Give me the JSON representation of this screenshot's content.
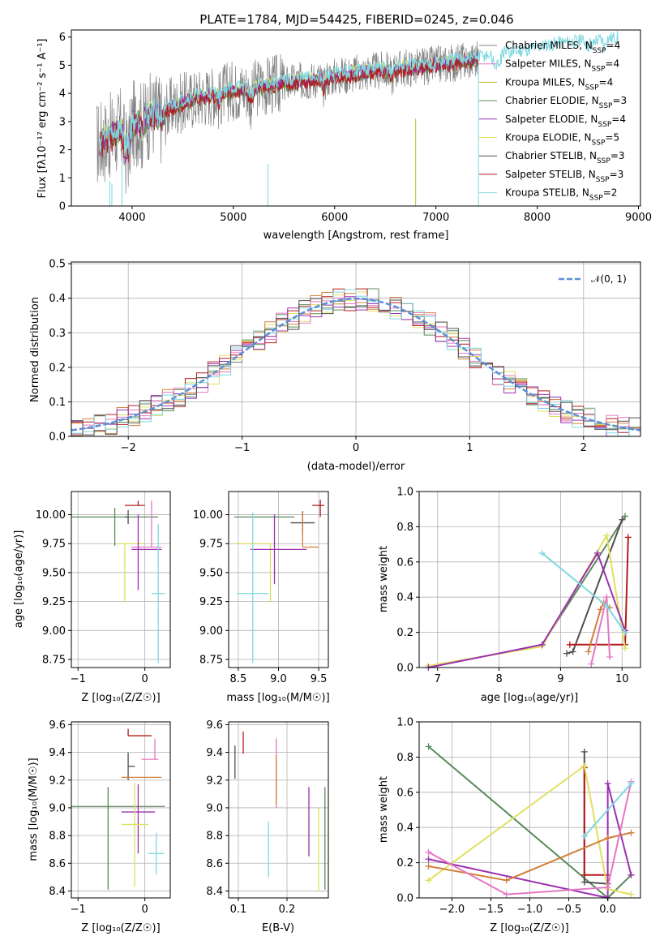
{
  "figure_title": "PLATE=1784, MJD=54425, FIBERID=0245, z=0.046",
  "colors": {
    "chabrier_miles": "#808080",
    "salpeter_miles": "#e377c2",
    "kroupa_miles": "#bcbd22",
    "chabrier_elodie": "#5a8a5a",
    "salpeter_elodie": "#9b30b0",
    "kroupa_elodie": "#e0e060",
    "chabrier_stelib": "#505050",
    "salpeter_stelib": "#b31b1b",
    "kroupa_stelib": "#7fd8e0",
    "gaussian": "#5b8fd9",
    "orange": "#d2803a"
  },
  "chart_data": [
    {
      "id": "spectrum",
      "type": "line",
      "xlabel": "wavelength [Angstrom, rest frame]",
      "ylabel": "Flux [fλ10⁻¹⁷ erg cm⁻² s⁻¹ A⁻¹]",
      "xlim": [
        3400,
        9020
      ],
      "ylim": [
        0,
        6.25
      ],
      "xticks": [
        4000,
        5000,
        6000,
        7000,
        8000,
        9000
      ],
      "yticks": [
        0,
        1,
        2,
        3,
        4,
        5,
        6
      ],
      "legend": [
        {
          "name": "Chabrier MILES, NSSP=4",
          "color": "#808080"
        },
        {
          "name": "Salpeter MILES, NSSP=4",
          "color": "#e377c2"
        },
        {
          "name": "Kroupa MILES, NSSP=4",
          "color": "#bcbd22"
        },
        {
          "name": "Chabrier ELODIE, NSSP=3",
          "color": "#5a8a5a"
        },
        {
          "name": "Salpeter ELODIE, NSSP=4",
          "color": "#9b30b0"
        },
        {
          "name": "Kroupa ELODIE, NSSP=5",
          "color": "#e0e060"
        },
        {
          "name": "Chabrier STELIB, NSSP=3",
          "color": "#505050"
        },
        {
          "name": "Salpeter STELIB, NSSP=3",
          "color": "#b31b1b"
        },
        {
          "name": "Kroupa STELIB, NSSP=2",
          "color": "#7fd8e0"
        }
      ],
      "continuum": {
        "x": [
          3650,
          3800,
          4000,
          4300,
          4600,
          5000,
          5400,
          5800,
          6200,
          6600,
          7000,
          7400,
          7800,
          8200,
          8600,
          8800
        ],
        "y": [
          2.2,
          2.5,
          2.9,
          3.4,
          3.8,
          4.1,
          4.3,
          4.5,
          4.7,
          4.85,
          5.0,
          5.2,
          5.4,
          5.7,
          5.8,
          5.9
        ]
      }
    },
    {
      "id": "residuals",
      "type": "line",
      "xlabel": "(data-model)/error",
      "ylabel": "Normed distribution",
      "xlim": [
        -2.5,
        2.5
      ],
      "ylim": [
        0,
        0.505
      ],
      "xticks": [
        -2,
        -1,
        0,
        1,
        2
      ],
      "yticks": [
        0.0,
        0.1,
        0.2,
        0.3,
        0.4,
        0.5
      ],
      "legend": [
        {
          "name": "𝒩(0, 1)",
          "color": "#5b8fd9"
        }
      ],
      "bins": {
        "start": -2.5,
        "width": 0.1,
        "count": 50
      }
    },
    {
      "id": "age_vs_Z",
      "type": "scatter",
      "xlabel": "Z [log₁₀(Z/Z☉)]",
      "ylabel": "age  [log₁₀(age/yr)]",
      "xlim": [
        -1.1,
        0.38
      ],
      "ylim": [
        8.68,
        10.2
      ],
      "xticks": [
        -1,
        0
      ],
      "yticks": [
        8.75,
        9.0,
        9.25,
        9.5,
        9.75,
        10.0
      ],
      "points": [
        {
          "x": -0.45,
          "y": 9.98,
          "xerr": [
            0.65,
            0.65
          ],
          "yerr": [
            0.25,
            0.08
          ],
          "color": "#5a8a5a"
        },
        {
          "x": -0.1,
          "y": 10.08,
          "xerr": [
            0.2,
            0.1
          ],
          "yerr": [
            0.0,
            0.04
          ],
          "color": "#b31b1b"
        },
        {
          "x": -0.25,
          "y": 9.98,
          "xerr": [
            0.05,
            0.0
          ],
          "yerr": [
            0.06,
            0.06
          ],
          "color": "#505050"
        },
        {
          "x": -0.3,
          "y": 9.75,
          "xerr": [
            0.1,
            0.3
          ],
          "yerr": [
            0.5,
            0.0
          ],
          "color": "#e0e060"
        },
        {
          "x": 0.1,
          "y": 9.72,
          "xerr": [
            0.3,
            0.15
          ],
          "yerr": [
            0.0,
            0.4
          ],
          "color": "#e377c2"
        },
        {
          "x": -0.1,
          "y": 9.7,
          "xerr": [
            0.1,
            0.35
          ],
          "yerr": [
            0.35,
            0.3
          ],
          "color": "#9b30b0"
        },
        {
          "x": 0.2,
          "y": 9.32,
          "xerr": [
            0.1,
            0.1
          ],
          "yerr": [
            0.6,
            0.6
          ],
          "color": "#7fd8e0"
        }
      ]
    },
    {
      "id": "age_vs_mass",
      "type": "scatter",
      "xlabel": "mass [log₁₀(M/M☉)]",
      "ylabel": "",
      "xlim": [
        8.38,
        9.62
      ],
      "ylim": [
        8.68,
        10.2
      ],
      "xticks": [
        8.5,
        9.0,
        9.5
      ],
      "yticks": [
        8.75,
        9.0,
        9.25,
        9.5,
        9.75,
        10.0
      ],
      "points": [
        {
          "x": 8.6,
          "y": 9.98,
          "xerr": [
            0.15,
            0.6
          ],
          "yerr": [
            0.0,
            0.0
          ],
          "color": "#5a8a5a"
        },
        {
          "x": 9.52,
          "y": 10.08,
          "xerr": [
            0.1,
            0.05
          ],
          "yerr": [
            0.1,
            0.05
          ],
          "color": "#b31b1b"
        },
        {
          "x": 9.3,
          "y": 9.93,
          "xerr": [
            0.15,
            0.15
          ],
          "yerr": [
            0.1,
            0.1
          ],
          "color": "#505050"
        },
        {
          "x": 8.9,
          "y": 9.75,
          "xerr": [
            0.45,
            0.0
          ],
          "yerr": [
            0.5,
            0.0
          ],
          "color": "#e0e060"
        },
        {
          "x": 9.3,
          "y": 9.72,
          "xerr": [
            0.0,
            0.2
          ],
          "yerr": [
            0.0,
            0.3
          ],
          "color": "#d2803a"
        },
        {
          "x": 8.95,
          "y": 9.7,
          "xerr": [
            0.3,
            0.4
          ],
          "yerr": [
            0.3,
            0.3
          ],
          "color": "#9b30b0"
        },
        {
          "x": 8.68,
          "y": 9.32,
          "xerr": [
            0.2,
            0.2
          ],
          "yerr": [
            0.6,
            0.7
          ],
          "color": "#7fd8e0"
        }
      ]
    },
    {
      "id": "massweight_vs_age",
      "type": "line",
      "xlabel": "age  [log₁₀(age/yr)]",
      "ylabel": "mass weight",
      "xlim": [
        6.7,
        10.3
      ],
      "ylim": [
        0,
        1.0
      ],
      "xticks": [
        7,
        8,
        9,
        10
      ],
      "yticks": [
        0.0,
        0.2,
        0.4,
        0.6,
        0.8,
        1.0
      ],
      "series": [
        {
          "color": "#5a8a5a",
          "x": [
            8.7,
            10.05
          ],
          "y": [
            0.13,
            0.86
          ]
        },
        {
          "color": "#505050",
          "x": [
            9.1,
            9.2,
            10.0
          ],
          "y": [
            0.08,
            0.09,
            0.84
          ]
        },
        {
          "color": "#b31b1b",
          "x": [
            9.15,
            10.05,
            10.1
          ],
          "y": [
            0.13,
            0.13,
            0.74
          ]
        },
        {
          "color": "#e0e060",
          "x": [
            6.85,
            8.7,
            9.75,
            10.05
          ],
          "y": [
            0.01,
            0.12,
            0.75,
            0.11
          ]
        },
        {
          "color": "#9b30b0",
          "x": [
            6.85,
            8.7,
            9.6,
            10.05
          ],
          "y": [
            0.0,
            0.13,
            0.65,
            0.21
          ]
        },
        {
          "color": "#d2803a",
          "x": [
            9.45,
            9.65,
            9.7,
            9.8
          ],
          "y": [
            0.09,
            0.33,
            0.37,
            0.34
          ]
        },
        {
          "color": "#e377c2",
          "x": [
            9.5,
            9.75,
            9.8
          ],
          "y": [
            0.02,
            0.4,
            0.06
          ]
        },
        {
          "color": "#7fd8e0",
          "x": [
            8.7,
            9.75,
            10.05
          ],
          "y": [
            0.65,
            0.35,
            0.2
          ]
        }
      ]
    },
    {
      "id": "mass_vs_Z",
      "type": "scatter",
      "xlabel": "Z [log₁₀(Z/Z☉)]",
      "ylabel": "mass [log₁₀(M/M☉)]",
      "xlim": [
        -1.1,
        0.38
      ],
      "ylim": [
        8.35,
        9.62
      ],
      "xticks": [
        -1,
        0
      ],
      "yticks": [
        8.4,
        8.6,
        8.8,
        9.0,
        9.2,
        9.4,
        9.6
      ],
      "points": [
        {
          "x": -0.55,
          "y": 9.01,
          "xerr": [
            0.55,
            0.85
          ],
          "yerr": [
            0.6,
            0.14
          ],
          "color": "#5a8a5a"
        },
        {
          "x": -0.25,
          "y": 9.52,
          "xerr": [
            0.0,
            0.35
          ],
          "yerr": [
            0.0,
            0.05
          ],
          "color": "#b31b1b"
        },
        {
          "x": -0.25,
          "y": 9.3,
          "xerr": [
            0.0,
            0.1
          ],
          "yerr": [
            0.1,
            0.1
          ],
          "color": "#505050"
        },
        {
          "x": 0.0,
          "y": 9.22,
          "xerr": [
            0.35,
            0.25
          ],
          "yerr": [
            0.0,
            0.0
          ],
          "color": "#d2803a"
        },
        {
          "x": 0.15,
          "y": 9.35,
          "xerr": [
            0.2,
            0.05
          ],
          "yerr": [
            0.0,
            0.15
          ],
          "color": "#e377c2"
        },
        {
          "x": -0.1,
          "y": 8.97,
          "xerr": [
            0.25,
            0.25
          ],
          "yerr": [
            0.3,
            0.2
          ],
          "color": "#9b30b0"
        },
        {
          "x": -0.15,
          "y": 8.88,
          "xerr": [
            0.2,
            0.2
          ],
          "yerr": [
            0.45,
            0.3
          ],
          "color": "#e0e060"
        },
        {
          "x": 0.17,
          "y": 8.67,
          "xerr": [
            0.12,
            0.12
          ],
          "yerr": [
            0.15,
            0.15
          ],
          "color": "#7fd8e0"
        }
      ]
    },
    {
      "id": "mass_vs_EBV",
      "type": "scatter",
      "xlabel": "E(B-V)",
      "ylabel": "",
      "xlim": [
        0.08,
        0.285
      ],
      "ylim": [
        8.35,
        9.62
      ],
      "xticks": [
        0.1,
        0.2
      ],
      "yticks": [
        8.4,
        8.6,
        8.8,
        9.0,
        9.2,
        9.4,
        9.6
      ],
      "points": [
        {
          "x": 0.093,
          "y": 9.33,
          "xerr": [
            0,
            0
          ],
          "yerr": [
            0.12,
            0.12
          ],
          "color": "#505050"
        },
        {
          "x": 0.11,
          "y": 9.47,
          "xerr": [
            0,
            0
          ],
          "yerr": [
            0.08,
            0.08
          ],
          "color": "#b31b1b"
        },
        {
          "x": 0.178,
          "y": 9.25,
          "xerr": [
            0,
            0
          ],
          "yerr": [
            0.25,
            0.25
          ],
          "color": "#e377c2"
        },
        {
          "x": 0.178,
          "y": 9.2,
          "xerr": [
            0,
            0
          ],
          "yerr": [
            0.18,
            0.18
          ],
          "color": "#d2803a"
        },
        {
          "x": 0.162,
          "y": 8.7,
          "xerr": [
            0,
            0
          ],
          "yerr": [
            0.2,
            0.2
          ],
          "color": "#7fd8e0"
        },
        {
          "x": 0.245,
          "y": 8.9,
          "xerr": [
            0,
            0
          ],
          "yerr": [
            0.25,
            0.25
          ],
          "color": "#9b30b0"
        },
        {
          "x": 0.265,
          "y": 8.7,
          "xerr": [
            0,
            0
          ],
          "yerr": [
            0.3,
            0.3
          ],
          "color": "#e0e060"
        },
        {
          "x": 0.278,
          "y": 8.78,
          "xerr": [
            0,
            0
          ],
          "yerr": [
            0.37,
            0.37
          ],
          "color": "#5a8a5a"
        }
      ]
    },
    {
      "id": "massweight_vs_Z",
      "type": "line",
      "xlabel": "Z [log₁₀(Z/Z☉)]",
      "ylabel": "mass weight",
      "xlim": [
        -2.42,
        0.42
      ],
      "ylim": [
        0,
        1.0
      ],
      "xticks": [
        -2.0,
        -1.5,
        -1.0,
        -0.5,
        0.0
      ],
      "yticks": [
        0.0,
        0.2,
        0.4,
        0.6,
        0.8,
        1.0
      ],
      "series": [
        {
          "color": "#5a8a5a",
          "x": [
            -2.3,
            0.0,
            0.3
          ],
          "y": [
            0.86,
            0.0,
            0.13
          ]
        },
        {
          "color": "#505050",
          "x": [
            -0.3,
            -0.3,
            0.0
          ],
          "y": [
            0.83,
            0.09,
            0.08
          ]
        },
        {
          "color": "#b31b1b",
          "x": [
            -0.3,
            -0.3,
            0.0
          ],
          "y": [
            0.74,
            0.13,
            0.13
          ]
        },
        {
          "color": "#e0e060",
          "x": [
            -2.3,
            -0.3,
            0.0,
            0.3
          ],
          "y": [
            0.1,
            0.75,
            0.05,
            0.02
          ]
        },
        {
          "color": "#9b30b0",
          "x": [
            -2.3,
            0.0,
            0.0,
            0.3
          ],
          "y": [
            0.22,
            0.0,
            0.65,
            0.13
          ]
        },
        {
          "color": "#d2803a",
          "x": [
            -2.3,
            -1.3,
            0.0,
            0.3
          ],
          "y": [
            0.18,
            0.1,
            0.34,
            0.37
          ]
        },
        {
          "color": "#e377c2",
          "x": [
            -2.3,
            -1.3,
            0.0,
            0.3
          ],
          "y": [
            0.26,
            0.02,
            0.06,
            0.66
          ]
        },
        {
          "color": "#7fd8e0",
          "x": [
            -0.3,
            0.3
          ],
          "y": [
            0.35,
            0.65
          ]
        }
      ]
    }
  ]
}
